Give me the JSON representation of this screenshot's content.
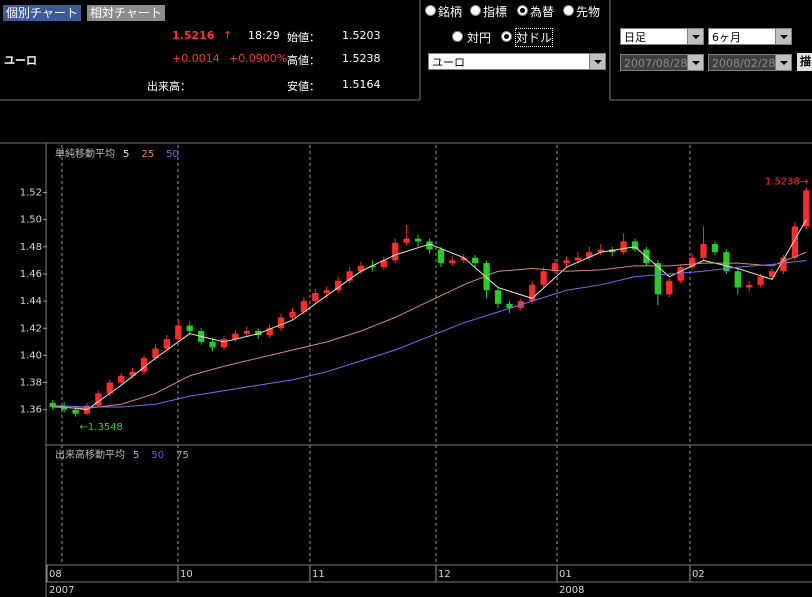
{
  "ui": {
    "tabs": [
      "個別チャート",
      "相対チャート"
    ],
    "quote": {
      "name": "ユーロ",
      "price": "1.5216",
      "arrow": "↑",
      "time": "18:29",
      "change": "+0.0014",
      "change_pct": "+0.0900%",
      "volume_label": "出来高：",
      "open_label": "始値：",
      "open": "1.5203",
      "high_label": "高値：",
      "high": "1.5238",
      "low_label": "安値：",
      "low": "1.5164"
    },
    "market_options": [
      "銘柄",
      "指標",
      "為替",
      "先物"
    ],
    "selected_market": 2,
    "currency_options": [
      "対円",
      "対ドル"
    ],
    "selected_currency": 1,
    "currency_select": "ユーロ",
    "period_type": "日足",
    "period": "6ヶ月",
    "date_from": "2007/08/28",
    "date_to": "2008/02/28",
    "draw_button": "描"
  },
  "chart_data": {
    "type": "candlestick",
    "legend_title": "単純移動平均",
    "up_color": "#ff2a2a",
    "down_color": "#22d022",
    "ylim": [
      1.334,
      1.555
    ],
    "yticks": [
      1.36,
      1.38,
      {
        "value": 1.4,
        "label": "1.40"
      },
      1.42,
      1.44,
      1.46,
      1.48,
      {
        "value": 1.5,
        "label": "1.50"
      },
      1.52
    ],
    "xlim": [
      0,
      67
    ],
    "xgrid": [
      1.31,
      11.47,
      23.03,
      34.07,
      44.67,
      56.31
    ],
    "month_labels": [
      {
        "value": 0,
        "label": "08"
      },
      {
        "value": 11.47,
        "label": "10"
      },
      {
        "value": 23.03,
        "label": "11"
      },
      {
        "value": 34.07,
        "label": "12"
      },
      {
        "value": 44.67,
        "label": "01"
      },
      {
        "value": 56.31,
        "label": "02"
      }
    ],
    "year_labels": [
      {
        "value": 0,
        "label": "2007"
      },
      {
        "value": 44.67,
        "label": "2008"
      }
    ],
    "high_label": "1.5238→",
    "low_label": "←1.3548",
    "candles": [
      [
        1.365,
        1.3672,
        1.36,
        1.362
      ],
      [
        1.362,
        1.366,
        1.358,
        1.36
      ],
      [
        1.36,
        1.362,
        1.3548,
        1.357
      ],
      [
        1.357,
        1.365,
        1.356,
        1.363
      ],
      [
        1.363,
        1.374,
        1.362,
        1.372
      ],
      [
        1.372,
        1.382,
        1.37,
        1.38
      ],
      [
        1.38,
        1.387,
        1.378,
        1.385
      ],
      [
        1.385,
        1.391,
        1.383,
        1.388
      ],
      [
        1.388,
        1.4,
        1.386,
        1.398
      ],
      [
        1.398,
        1.408,
        1.396,
        1.405
      ],
      [
        1.405,
        1.415,
        1.403,
        1.412
      ],
      [
        1.412,
        1.427,
        1.41,
        1.422
      ],
      [
        1.422,
        1.425,
        1.416,
        1.418
      ],
      [
        1.418,
        1.42,
        1.408,
        1.41
      ],
      [
        1.41,
        1.413,
        1.403,
        1.406
      ],
      [
        1.406,
        1.414,
        1.404,
        1.412
      ],
      [
        1.412,
        1.419,
        1.41,
        1.416
      ],
      [
        1.416,
        1.421,
        1.414,
        1.418
      ],
      [
        1.418,
        1.42,
        1.412,
        1.415
      ],
      [
        1.415,
        1.423,
        1.413,
        1.42
      ],
      [
        1.42,
        1.431,
        1.418,
        1.428
      ],
      [
        1.428,
        1.435,
        1.426,
        1.432
      ],
      [
        1.432,
        1.443,
        1.43,
        1.44
      ],
      [
        1.44,
        1.449,
        1.438,
        1.446
      ],
      [
        1.446,
        1.451,
        1.442,
        1.448
      ],
      [
        1.448,
        1.458,
        1.446,
        1.455
      ],
      [
        1.455,
        1.465,
        1.453,
        1.462
      ],
      [
        1.462,
        1.469,
        1.46,
        1.466
      ],
      [
        1.466,
        1.47,
        1.462,
        1.465
      ],
      [
        1.465,
        1.473,
        1.463,
        1.47
      ],
      [
        1.47,
        1.486,
        1.468,
        1.483
      ],
      [
        1.483,
        1.496,
        1.481,
        1.486
      ],
      [
        1.486,
        1.489,
        1.48,
        1.484
      ],
      [
        1.484,
        1.486,
        1.475,
        1.478
      ],
      [
        1.478,
        1.48,
        1.465,
        1.468
      ],
      [
        1.468,
        1.473,
        1.466,
        1.47
      ],
      [
        1.47,
        1.475,
        1.468,
        1.472
      ],
      [
        1.472,
        1.474,
        1.465,
        1.468
      ],
      [
        1.468,
        1.47,
        1.442,
        1.448
      ],
      [
        1.448,
        1.45,
        1.435,
        1.438
      ],
      [
        1.438,
        1.44,
        1.431,
        1.435
      ],
      [
        1.435,
        1.442,
        1.433,
        1.44
      ],
      [
        1.44,
        1.455,
        1.438,
        1.452
      ],
      [
        1.452,
        1.465,
        1.45,
        1.462
      ],
      [
        1.462,
        1.471,
        1.46,
        1.468
      ],
      [
        1.468,
        1.473,
        1.465,
        1.47
      ],
      [
        1.47,
        1.476,
        1.468,
        1.472
      ],
      [
        1.472,
        1.48,
        1.47,
        1.476
      ],
      [
        1.476,
        1.482,
        1.474,
        1.478
      ],
      [
        1.478,
        1.48,
        1.473,
        1.476
      ],
      [
        1.476,
        1.49,
        1.474,
        1.484
      ],
      [
        1.484,
        1.486,
        1.476,
        1.478
      ],
      [
        1.478,
        1.48,
        1.466,
        1.468
      ],
      [
        1.468,
        1.47,
        1.437,
        1.445
      ],
      [
        1.445,
        1.457,
        1.443,
        1.455
      ],
      [
        1.455,
        1.467,
        1.453,
        1.465
      ],
      [
        1.465,
        1.475,
        1.463,
        1.472
      ],
      [
        1.472,
        1.495,
        1.47,
        1.482
      ],
      [
        1.482,
        1.484,
        1.474,
        1.476
      ],
      [
        1.476,
        1.478,
        1.46,
        1.462
      ],
      [
        1.462,
        1.464,
        1.445,
        1.45
      ],
      [
        1.45,
        1.455,
        1.447,
        1.452
      ],
      [
        1.452,
        1.46,
        1.45,
        1.458
      ],
      [
        1.458,
        1.464,
        1.456,
        1.462
      ],
      [
        1.462,
        1.474,
        1.46,
        1.472
      ],
      [
        1.472,
        1.498,
        1.47,
        1.495
      ],
      [
        1.495,
        1.5238,
        1.493,
        1.5216
      ]
    ],
    "ma_x": [
      0.5,
      3.5,
      6.5,
      9.5,
      12.5,
      15.5,
      18.5,
      21.5,
      24.5,
      27.5,
      30.5,
      33.5,
      36.5,
      39.5,
      42.5,
      45.5,
      48.5,
      51.5,
      54.5,
      57.5,
      60.5,
      63.5,
      66.5
    ],
    "series": [
      {
        "name": "5",
        "color": "#e8e8c8",
        "values": [
          1.363,
          1.36,
          1.378,
          1.398,
          1.416,
          1.41,
          1.416,
          1.426,
          1.444,
          1.462,
          1.474,
          1.482,
          1.472,
          1.45,
          1.442,
          1.465,
          1.476,
          1.48,
          1.458,
          1.47,
          1.464,
          1.456,
          1.5
        ]
      },
      {
        "name": "25",
        "color": "#d88a70",
        "values": [
          1.362,
          1.361,
          1.364,
          1.372,
          1.385,
          1.392,
          1.398,
          1.404,
          1.41,
          1.418,
          1.428,
          1.44,
          1.452,
          1.462,
          1.464,
          1.462,
          1.463,
          1.466,
          1.466,
          1.468,
          1.468,
          1.466,
          1.476
        ]
      },
      {
        "name": "50",
        "color": "#7070f0",
        "values": [
          1.363,
          1.362,
          1.362,
          1.364,
          1.37,
          1.374,
          1.378,
          1.382,
          1.388,
          1.396,
          1.404,
          1.414,
          1.424,
          1.432,
          1.44,
          1.448,
          1.452,
          1.458,
          1.46,
          1.462,
          1.465,
          1.467,
          1.47
        ]
      }
    ]
  },
  "volume_chart": {
    "legend_title": "出来高移動平均",
    "series": [
      {
        "name": "5",
        "color": "#80c0ff"
      },
      {
        "name": "50",
        "color": "#6060ff"
      },
      {
        "name": "75",
        "color": "#90c890"
      }
    ]
  }
}
